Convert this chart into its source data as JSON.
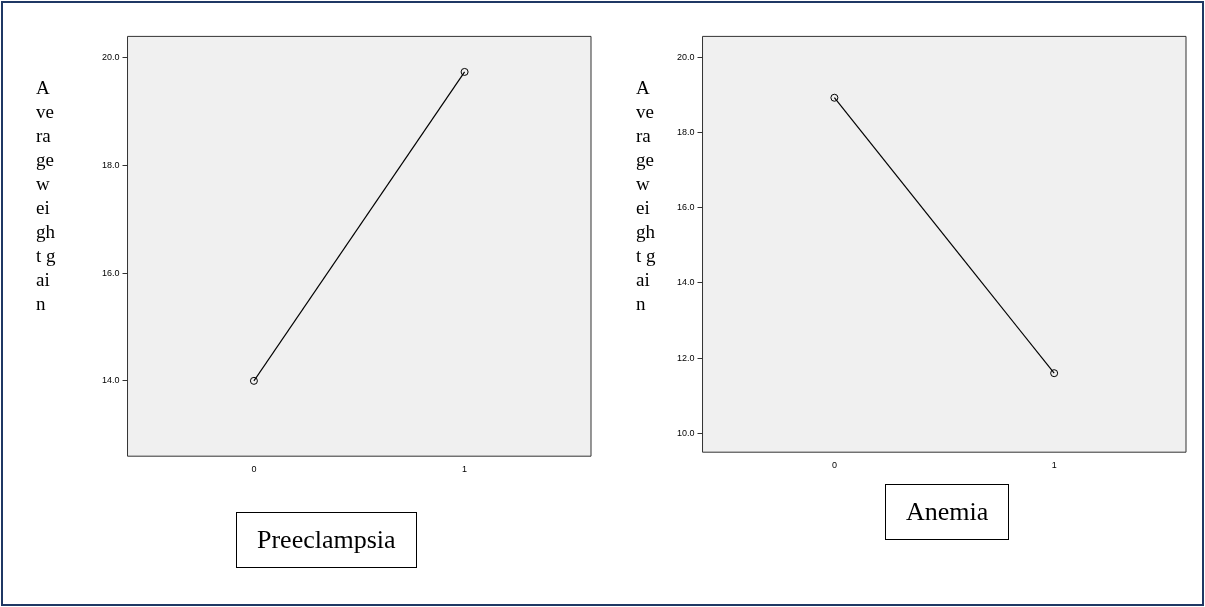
{
  "chart_data": [
    {
      "type": "line",
      "ylabel": "Average weight gain",
      "xlabel": "Preeclampsia",
      "categories": [
        "0",
        "1"
      ],
      "marker": "circle",
      "series": [
        {
          "color": "#000000",
          "values": [
            14.0,
            19.74
          ]
        }
      ],
      "ylim": [
        12.6,
        20.4
      ],
      "yticks": [
        {
          "value": 14,
          "label": "14.0"
        },
        {
          "value": 16,
          "label": "16.0"
        },
        {
          "value": 18,
          "label": "18.0"
        },
        {
          "value": 20,
          "label": "20.0"
        }
      ]
    },
    {
      "type": "line",
      "ylabel": "Average weight gain",
      "xlabel": "Anemia",
      "categories": [
        "0",
        "1"
      ],
      "marker": "circle",
      "series": [
        {
          "color": "#000000",
          "values": [
            18.92,
            11.6
          ]
        }
      ],
      "ylim": [
        9.5,
        20.55
      ],
      "yticks": [
        {
          "value": 10,
          "label": "10.0"
        },
        {
          "value": 12,
          "label": "12.0"
        },
        {
          "value": 14,
          "label": "14.0"
        },
        {
          "value": 16,
          "label": "16.0"
        },
        {
          "value": 18,
          "label": "18.0"
        },
        {
          "value": 20,
          "label": "20.0"
        }
      ]
    }
  ]
}
